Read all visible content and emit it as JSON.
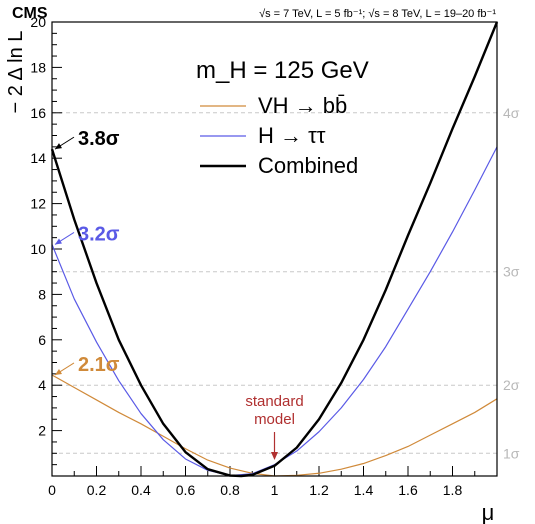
{
  "chart_data": {
    "type": "line",
    "experiment": "CMS",
    "energy_label": "√s = 7 TeV, L = 5 fb⁻¹; √s = 8 TeV, L = 19–20 fb⁻¹",
    "title": "m_H = 125 GeV",
    "xlabel": "μ",
    "ylabel": "− 2 Δ ln L",
    "xlim": [
      0,
      2.0
    ],
    "ylim": [
      0,
      20
    ],
    "x_ticks": [
      "0",
      "0.2",
      "0.4",
      "0.6",
      "0.8",
      "1",
      "1.2",
      "1.4",
      "1.6",
      "1.8"
    ],
    "y_ticks": [
      "2",
      "4",
      "6",
      "8",
      "10",
      "12",
      "14",
      "16",
      "18",
      "20"
    ],
    "significance_lines": [
      {
        "label": "1σ",
        "value": 1
      },
      {
        "label": "2σ",
        "value": 4
      },
      {
        "label": "3σ",
        "value": 9
      },
      {
        "label": "4σ",
        "value": 16
      }
    ],
    "annotation": {
      "text_line1": "standard",
      "text_line2": "model",
      "x": 1.0,
      "color": "#b03030"
    },
    "legend_position": "top-right",
    "series": [
      {
        "name": "VH → bb̄",
        "color": "#d08a3a",
        "stroke_px": 1.2,
        "sigma_label": "2.1σ",
        "x": [
          0,
          0.1,
          0.2,
          0.3,
          0.4,
          0.5,
          0.6,
          0.7,
          0.8,
          0.9,
          1.0,
          1.1,
          1.2,
          1.3,
          1.4,
          1.5,
          1.6,
          1.7,
          1.8,
          1.9,
          2.0
        ],
        "y": [
          4.45,
          3.9,
          3.35,
          2.8,
          2.3,
          1.75,
          1.2,
          0.7,
          0.35,
          0.12,
          0.0,
          0.03,
          0.12,
          0.3,
          0.55,
          0.9,
          1.3,
          1.8,
          2.3,
          2.8,
          3.4
        ]
      },
      {
        "name": "H → ττ",
        "color": "#5a5ae6",
        "stroke_px": 1.2,
        "sigma_label": "3.2σ",
        "x": [
          0,
          0.1,
          0.2,
          0.3,
          0.4,
          0.5,
          0.6,
          0.7,
          0.8,
          0.9,
          1.0,
          1.1,
          1.2,
          1.3,
          1.4,
          1.5,
          1.6,
          1.7,
          1.8,
          1.9,
          2.0
        ],
        "y": [
          10.2,
          7.8,
          5.9,
          4.2,
          2.75,
          1.6,
          0.75,
          0.25,
          0.02,
          0.1,
          0.5,
          1.1,
          1.95,
          3.0,
          4.25,
          5.7,
          7.35,
          9.0,
          10.75,
          12.6,
          14.5
        ]
      },
      {
        "name": "Combined",
        "color": "#000000",
        "stroke_px": 2.4,
        "sigma_label": "3.8σ",
        "x": [
          0,
          0.1,
          0.2,
          0.3,
          0.4,
          0.5,
          0.6,
          0.7,
          0.8,
          0.85,
          0.9,
          1.0,
          1.1,
          1.2,
          1.3,
          1.4,
          1.5,
          1.6,
          1.7,
          1.8,
          1.9,
          2.0
        ],
        "y": [
          14.4,
          11.3,
          8.5,
          6.0,
          4.0,
          2.3,
          1.05,
          0.3,
          0.02,
          0.0,
          0.05,
          0.45,
          1.25,
          2.5,
          4.1,
          6.0,
          8.2,
          10.6,
          12.9,
          15.3,
          17.6,
          20.0
        ]
      }
    ]
  }
}
